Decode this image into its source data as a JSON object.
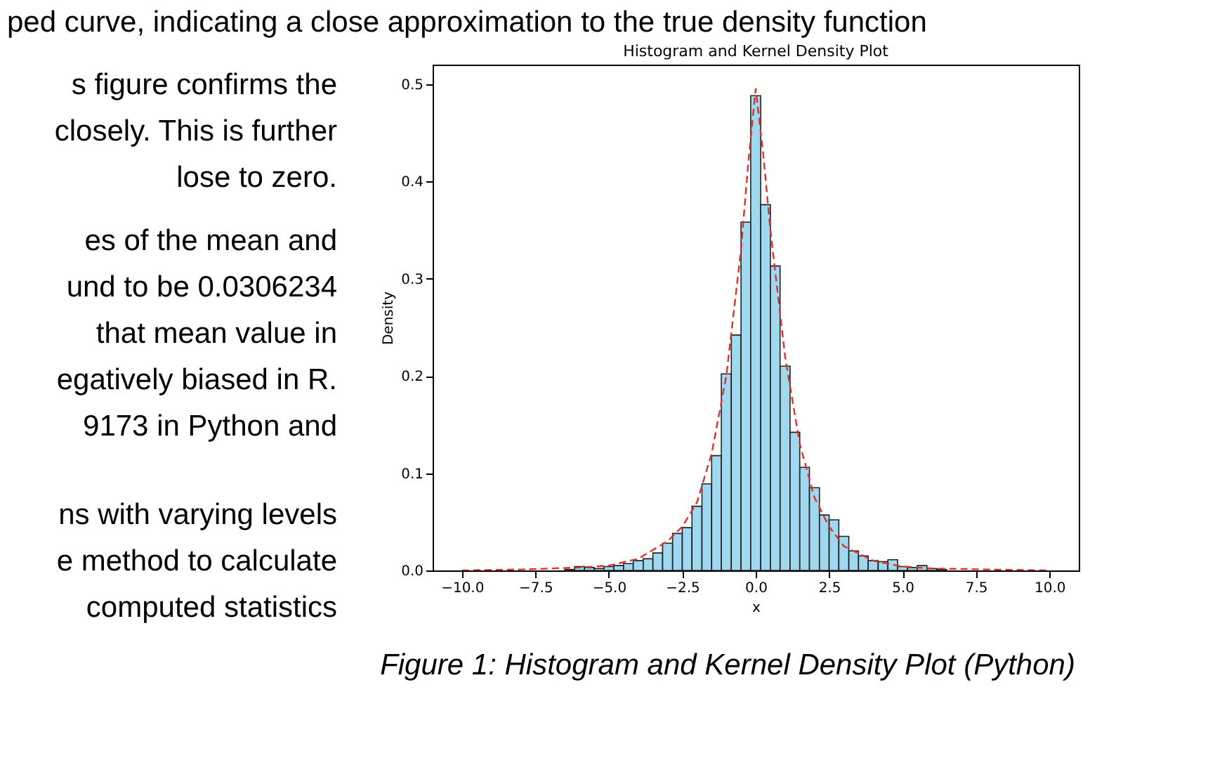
{
  "chart_data": {
    "type": "histogram",
    "title": "Histogram and Kernel Density Plot",
    "xlabel": "x",
    "ylabel": "Density",
    "bins": [
      -6.5,
      -6.17,
      -5.83,
      -5.5,
      -5.17,
      -4.83,
      -4.5,
      -4.17,
      -3.83,
      -3.5,
      -3.17,
      -2.83,
      -2.5,
      -2.17,
      -1.83,
      -1.5,
      -1.17,
      -0.83,
      -0.5,
      -0.17,
      0.17,
      0.5,
      0.83,
      1.17,
      1.5,
      1.83,
      2.17,
      2.5,
      2.83,
      3.17,
      3.5,
      3.83,
      4.17,
      4.5,
      4.83,
      5.17,
      5.5,
      5.83,
      6.17,
      6.5
    ],
    "values": [
      0.001,
      0.004,
      0.003,
      0.002,
      0.004,
      0.005,
      0.007,
      0.01,
      0.012,
      0.018,
      0.028,
      0.038,
      0.044,
      0.066,
      0.089,
      0.118,
      0.202,
      0.242,
      0.358,
      0.488,
      0.376,
      0.313,
      0.21,
      0.142,
      0.106,
      0.085,
      0.057,
      0.052,
      0.035,
      0.02,
      0.015,
      0.01,
      0.009,
      0.011,
      0.004,
      0.003,
      0.005,
      0.002,
      0.001
    ],
    "color": "#87ceeb",
    "series": [
      {
        "type": "line",
        "color": "#e0302a",
        "line_style": "dashed",
        "x": [
          -10,
          -8,
          -6,
          -5,
          -4,
          -3,
          -2.5,
          -2,
          -1.5,
          -1,
          -0.5,
          -0.25,
          0,
          0.25,
          0.5,
          1,
          1.5,
          2,
          2.5,
          3,
          4,
          5,
          6,
          8,
          10
        ],
        "values": [
          0,
          0.001,
          0.003,
          0.005,
          0.012,
          0.03,
          0.045,
          0.07,
          0.12,
          0.2,
          0.33,
          0.42,
          0.495,
          0.43,
          0.35,
          0.22,
          0.13,
          0.075,
          0.045,
          0.025,
          0.01,
          0.004,
          0.002,
          0.001,
          0
        ]
      }
    ],
    "xlim": [
      -11,
      11
    ],
    "ylim": [
      0,
      0.52
    ],
    "xticks": [
      {
        "value": -10,
        "label": "−10.0"
      },
      {
        "value": -7.5,
        "label": "−7.5"
      },
      {
        "value": -5,
        "label": "−5.0"
      },
      {
        "value": -2.5,
        "label": "−2.5"
      },
      {
        "value": 0,
        "label": "0.0"
      },
      2.5,
      {
        "value": 5,
        "label": "5.0"
      },
      7.5,
      {
        "value": 10,
        "label": "10.0"
      }
    ],
    "yticks": [
      {
        "value": 0,
        "label": "0.0"
      },
      0.1,
      0.2,
      0.3,
      0.4,
      0.5
    ],
    "grid": false,
    "annotations": [
      "ped curve, indicating a close approximation to the true density function",
      "s figure confirms the",
      "closely. This is further",
      "lose to zero.",
      "es of the mean and",
      "und to be 0.0306234",
      "that mean value in",
      "egatively biased in R.",
      "9173 in Python and",
      "ns with varying levels",
      "e method to calculate",
      "computed statistics",
      "Figure 1: Histogram and Kernel Density Plot (Python)"
    ]
  }
}
